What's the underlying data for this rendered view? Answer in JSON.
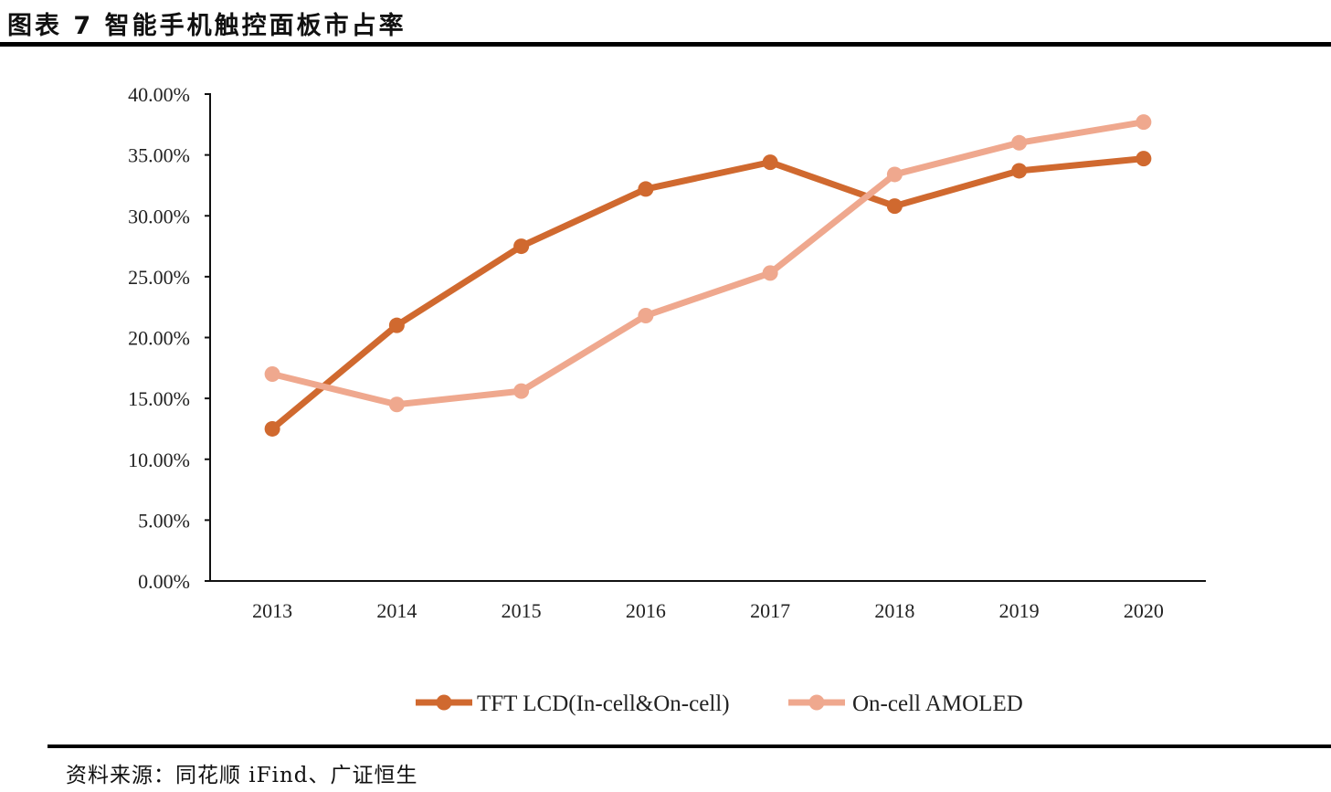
{
  "figure": {
    "title": "图表 7 智能手机触控面板市占率",
    "source": "资料来源：同花顺 iFind、广证恒生"
  },
  "chart_data": {
    "type": "line",
    "categories": [
      "2013",
      "2014",
      "2015",
      "2016",
      "2017",
      "2018",
      "2019",
      "2020"
    ],
    "series": [
      {
        "name": "TFT LCD(In-cell&On-cell)",
        "color": "#D0692F",
        "values": [
          12.5,
          21.0,
          27.5,
          32.2,
          34.4,
          30.8,
          33.7,
          34.7
        ]
      },
      {
        "name": "On-cell AMOLED",
        "color": "#EFA88E",
        "values": [
          17.0,
          14.5,
          15.6,
          21.8,
          25.3,
          33.4,
          36.0,
          37.7
        ]
      }
    ],
    "ylim": [
      0,
      40
    ],
    "yticks": [
      "0.00%",
      "5.00%",
      "10.00%",
      "15.00%",
      "20.00%",
      "25.00%",
      "30.00%",
      "35.00%",
      "40.00%"
    ],
    "xlabel": "",
    "ylabel": "",
    "legend": "bottom-center",
    "grid": false
  }
}
